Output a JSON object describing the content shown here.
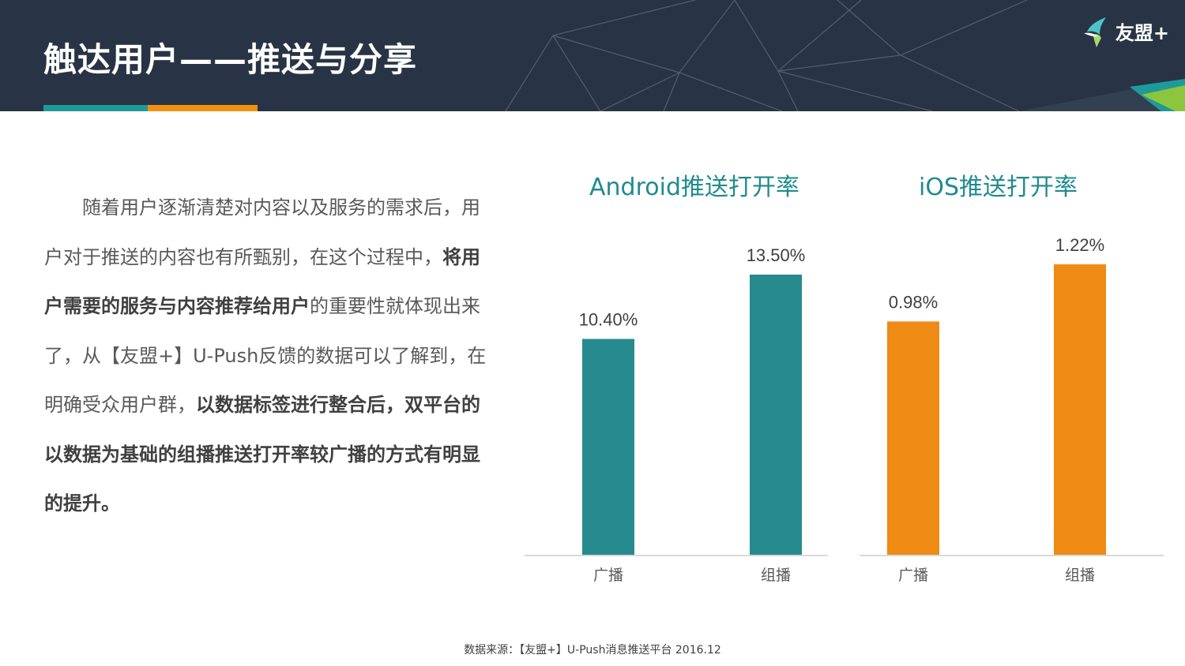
{
  "header": {
    "title": "触达用户——推送与分享",
    "logo_text": "友盟+",
    "colors": {
      "background": "#283445",
      "accent_teal": "#1f9a9a",
      "accent_orange": "#f0920f"
    }
  },
  "body": {
    "p1": "随着用户逐渐清楚对内容以及服务的需求后，用户对于推送的内容也有所甄别，在这个过程中，",
    "p2_bold": "将用户需要的服务与内容推荐给用户",
    "p3": "的重要性就体现出来了，从【友盟+】U-Push反馈的数据可以了解到，在明确受众用户群，",
    "p4_bold": "以数据标签进行整合后，双平台的以数据为基础的组播推送打开率较广播的方式有明显的提升。"
  },
  "chart_data": [
    {
      "type": "bar",
      "title": "Android推送打开率",
      "categories": [
        "广播",
        "组播"
      ],
      "values": [
        10.4,
        13.5
      ],
      "value_labels": [
        "10.40%",
        "13.50%"
      ],
      "color": "#268a8e",
      "grid": false
    },
    {
      "type": "bar",
      "title": "iOS推送打开率",
      "categories": [
        "广播",
        "组播"
      ],
      "values": [
        0.98,
        1.22
      ],
      "value_labels": [
        "0.98%",
        "1.22%"
      ],
      "color": "#ef8a14",
      "grid": false
    }
  ],
  "footer": {
    "source": "数据来源：【友盟+】U-Push消息推送平台 2016.12"
  }
}
